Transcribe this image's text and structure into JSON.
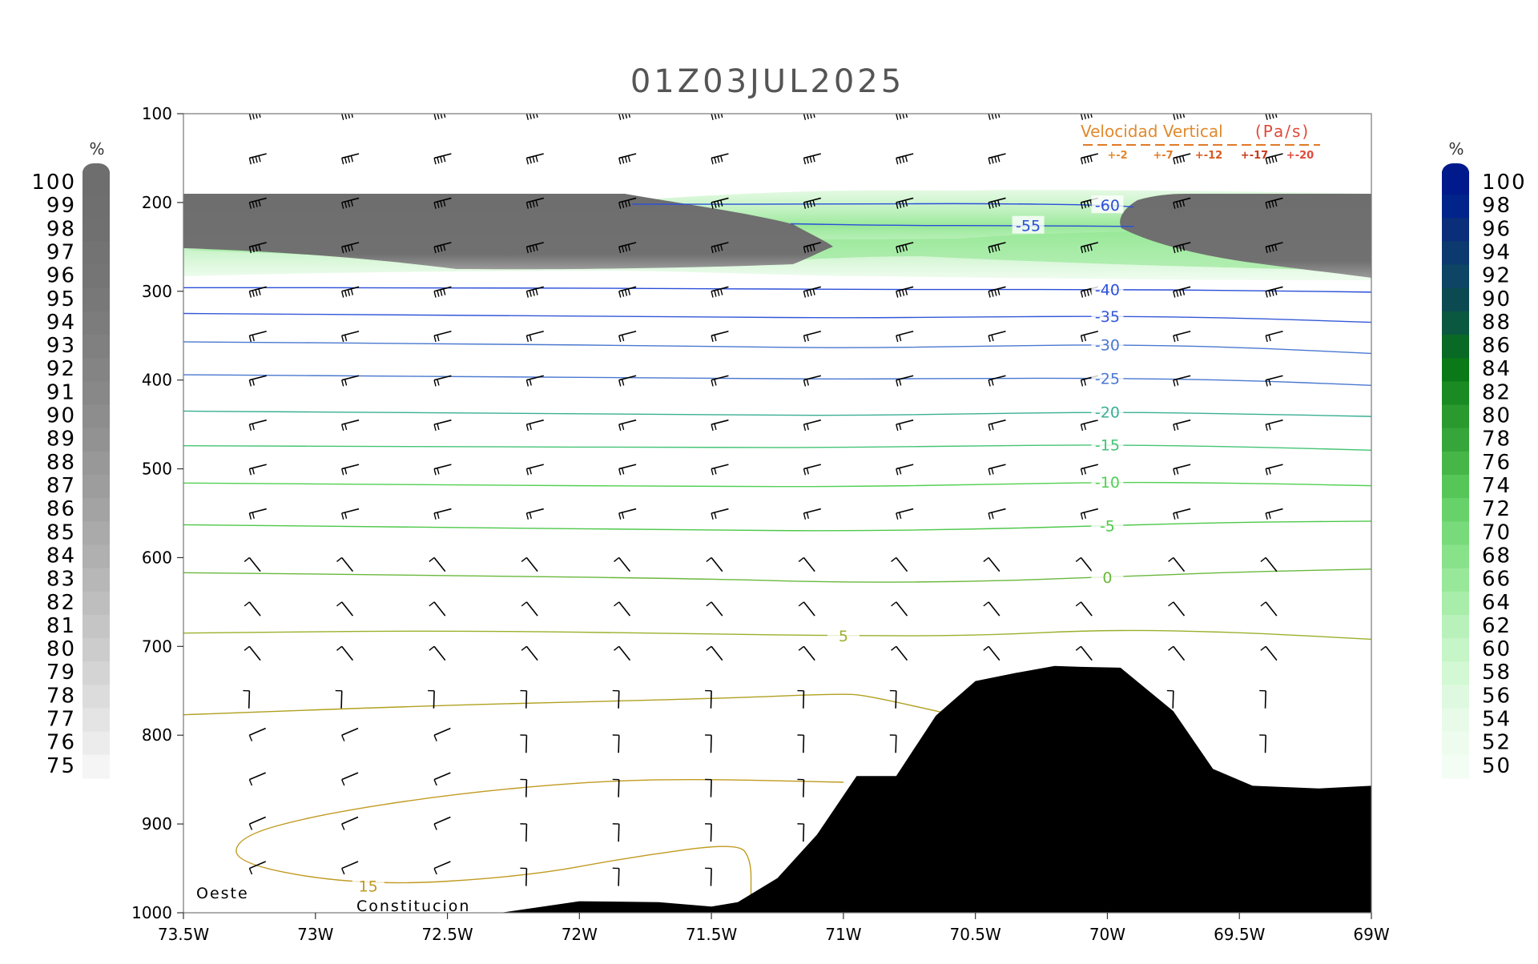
{
  "chart_data": {
    "type": "contour",
    "title": "01Z03JUL2025",
    "x": {
      "ticks": [
        -73.5,
        -73,
        -72.5,
        -72,
        -71.5,
        -71,
        -70.5,
        -70,
        -69.5,
        -69
      ],
      "tick_labels": [
        "73.5W",
        "73W",
        "72.5W",
        "72W",
        "71.5W",
        "71W",
        "70.5W",
        "70W",
        "69.5W",
        "69W"
      ],
      "range": [
        -73.5,
        -69
      ]
    },
    "y": {
      "ticks": [
        100,
        200,
        300,
        400,
        500,
        600,
        700,
        800,
        900,
        1000
      ],
      "tick_labels": [
        "100",
        "200",
        "300",
        "400",
        "500",
        "600",
        "700",
        "800",
        "900",
        "1000"
      ],
      "range": [
        100,
        1000
      ],
      "inverted": true
    },
    "annotations": {
      "left": "Oeste",
      "bottom": "Constitucion"
    },
    "temperature_contours": [
      {
        "level": -60,
        "label": "-60",
        "color": "#2a4ed8",
        "points": [
          [
            -71.8,
            202
          ],
          [
            -71.0,
            202
          ],
          [
            -70.5,
            201
          ],
          [
            -70.0,
            203
          ],
          [
            -69.9,
            205
          ]
        ]
      },
      {
        "level": -55,
        "label": "-55",
        "color": "#2a4ed8",
        "points": [
          [
            -71.2,
            224
          ],
          [
            -70.8,
            226
          ],
          [
            -70.3,
            226
          ],
          [
            -69.9,
            227
          ]
        ]
      },
      {
        "level": -40,
        "label": "-40",
        "color": "#2a4ed8",
        "points": [
          [
            -73.5,
            296
          ],
          [
            -72.5,
            296
          ],
          [
            -71.5,
            297
          ],
          [
            -71.0,
            298
          ],
          [
            -70.5,
            298
          ],
          [
            -70.0,
            298
          ],
          [
            -69.5,
            299
          ],
          [
            -69.0,
            301
          ]
        ]
      },
      {
        "level": -35,
        "label": "-35",
        "color": "#3458d8",
        "points": [
          [
            -73.5,
            325
          ],
          [
            -72.5,
            327
          ],
          [
            -71.5,
            329
          ],
          [
            -71.0,
            330
          ],
          [
            -70.5,
            329
          ],
          [
            -70.0,
            328
          ],
          [
            -69.5,
            330
          ],
          [
            -69.0,
            335
          ]
        ]
      },
      {
        "level": -30,
        "label": "-30",
        "color": "#4a78d0",
        "points": [
          [
            -73.5,
            357
          ],
          [
            -72.5,
            359
          ],
          [
            -71.5,
            362
          ],
          [
            -71.0,
            364
          ],
          [
            -70.5,
            362
          ],
          [
            -70.0,
            360
          ],
          [
            -69.5,
            363
          ],
          [
            -69.0,
            370
          ]
        ]
      },
      {
        "level": -25,
        "label": "-25",
        "color": "#4a78d0",
        "points": [
          [
            -73.5,
            394
          ],
          [
            -72.5,
            396
          ],
          [
            -71.5,
            398
          ],
          [
            -71.0,
            399
          ],
          [
            -70.5,
            398
          ],
          [
            -70.0,
            398
          ],
          [
            -69.5,
            400
          ],
          [
            -69.0,
            406
          ]
        ]
      },
      {
        "level": -20,
        "label": "-20",
        "color": "#3aaf92",
        "points": [
          [
            -73.5,
            435
          ],
          [
            -72.5,
            437
          ],
          [
            -71.5,
            439
          ],
          [
            -71.0,
            440
          ],
          [
            -70.5,
            438
          ],
          [
            -70.0,
            436
          ],
          [
            -69.5,
            438
          ],
          [
            -69.0,
            441
          ]
        ]
      },
      {
        "level": -15,
        "label": "-15",
        "color": "#44c474",
        "points": [
          [
            -73.5,
            474
          ],
          [
            -72.5,
            475
          ],
          [
            -71.5,
            476
          ],
          [
            -71.0,
            476
          ],
          [
            -70.5,
            474
          ],
          [
            -70.0,
            473
          ],
          [
            -69.5,
            475
          ],
          [
            -69.0,
            479
          ]
        ]
      },
      {
        "level": -10,
        "label": "-10",
        "color": "#52d052",
        "points": [
          [
            -73.5,
            516
          ],
          [
            -72.5,
            518
          ],
          [
            -71.5,
            520
          ],
          [
            -71.0,
            520
          ],
          [
            -70.5,
            518
          ],
          [
            -70.0,
            515
          ],
          [
            -69.5,
            516
          ],
          [
            -69.0,
            519
          ]
        ]
      },
      {
        "level": -5,
        "label": "-5",
        "color": "#4ec84a",
        "points": [
          [
            -73.5,
            563
          ],
          [
            -72.5,
            566
          ],
          [
            -71.5,
            569
          ],
          [
            -71.0,
            570
          ],
          [
            -70.5,
            568
          ],
          [
            -70.0,
            564
          ],
          [
            -69.5,
            560
          ],
          [
            -69.0,
            559
          ]
        ]
      },
      {
        "level": 0,
        "label": "0",
        "color": "#6ab83c",
        "points": [
          [
            -73.5,
            617
          ],
          [
            -72.5,
            620
          ],
          [
            -71.5,
            624
          ],
          [
            -71.0,
            628
          ],
          [
            -70.5,
            627
          ],
          [
            -70.0,
            622
          ],
          [
            -69.5,
            616
          ],
          [
            -69.0,
            613
          ]
        ]
      },
      {
        "level": 5,
        "label": "5",
        "color": "#9ab02c",
        "points": [
          [
            -73.5,
            685
          ],
          [
            -72.5,
            682
          ],
          [
            -71.5,
            686
          ],
          [
            -71.0,
            688
          ],
          [
            -70.5,
            688
          ],
          [
            -70.0,
            681
          ],
          [
            -69.5,
            684
          ],
          [
            -69.0,
            692
          ]
        ]
      },
      {
        "level": 10,
        "label": "",
        "color": "#b0a020",
        "points": [
          [
            -73.5,
            777
          ],
          [
            -72.5,
            766
          ],
          [
            -71.5,
            759
          ],
          [
            -71.0,
            753
          ],
          [
            -70.9,
            756
          ],
          [
            -70.6,
            776
          ]
        ]
      },
      {
        "level": 15,
        "label": "15",
        "color": "#c09a20",
        "points": [
          [
            -71.0,
            853
          ],
          [
            -71.6,
            849
          ],
          [
            -72.0,
            853
          ],
          [
            -72.5,
            867
          ],
          [
            -73.0,
            890
          ],
          [
            -73.3,
            915
          ],
          [
            -73.3,
            946
          ],
          [
            -72.8,
            970
          ],
          [
            -72.2,
            959
          ],
          [
            -71.8,
            937
          ],
          [
            -71.4,
            921
          ],
          [
            -71.35,
            940
          ],
          [
            -71.35,
            980
          ]
        ]
      }
    ],
    "terrain": {
      "points": [
        [
          -72.3,
          1000
        ],
        [
          -72.0,
          987
        ],
        [
          -71.7,
          988
        ],
        [
          -71.5,
          993
        ],
        [
          -71.4,
          988
        ],
        [
          -71.25,
          961
        ],
        [
          -71.1,
          912
        ],
        [
          -70.95,
          846
        ],
        [
          -70.8,
          846
        ],
        [
          -70.65,
          778
        ],
        [
          -70.5,
          739
        ],
        [
          -70.35,
          730
        ],
        [
          -70.2,
          722
        ],
        [
          -70.1,
          723
        ],
        [
          -69.95,
          724
        ],
        [
          -69.75,
          773
        ],
        [
          -69.6,
          838
        ],
        [
          -69.45,
          857
        ],
        [
          -69.2,
          860
        ],
        [
          -69.0,
          857
        ]
      ]
    },
    "cloud_ice_left_scale": {
      "unit": "%",
      "min": 75,
      "max": 100,
      "labels": [
        "100",
        "99",
        "98",
        "97",
        "96",
        "95",
        "94",
        "93",
        "92",
        "91",
        "90",
        "89",
        "88",
        "87",
        "86",
        "85",
        "84",
        "83",
        "82",
        "81",
        "80",
        "79",
        "78",
        "77",
        "76",
        "75"
      ]
    },
    "humidity_right_scale": {
      "unit": "%",
      "min": 50,
      "max": 100,
      "labels": [
        "100",
        "98",
        "96",
        "94",
        "92",
        "90",
        "88",
        "86",
        "84",
        "82",
        "80",
        "78",
        "76",
        "74",
        "72",
        "70",
        "68",
        "66",
        "64",
        "62",
        "60",
        "58",
        "56",
        "54",
        "52",
        "50"
      ]
    },
    "vertical_velocity_legend": {
      "title_a": "Velocidad Vertical",
      "title_b": "(Pa/s)",
      "entries": [
        {
          "label": "+-2",
          "color": "#e08a2e"
        },
        {
          "label": "+-7",
          "color": "#e07a28"
        },
        {
          "label": "+-12",
          "color": "#d85a22"
        },
        {
          "label": "+-17",
          "color": "#c83a1c"
        },
        {
          "label": "+-20",
          "color": "#e04a3a"
        }
      ]
    }
  }
}
